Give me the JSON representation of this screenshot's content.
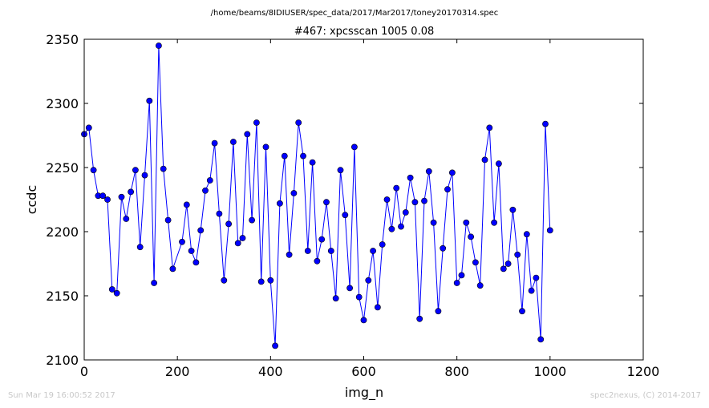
{
  "footer": {
    "timestamp": "Sun Mar 19 16:00:52 2017",
    "credit": "spec2nexus, (C) 2014-2017"
  },
  "chart_data": {
    "type": "line",
    "title": "#467: xpcsscan 1005 0.08",
    "subtitle": "/home/beams/8IDIUSER/spec_data/2017/Mar2017/toney20170314.spec",
    "xlabel": "img_n",
    "ylabel": "ccdc",
    "xlim": [
      0,
      1200
    ],
    "ylim": [
      2100,
      2350
    ],
    "xticks": [
      0,
      200,
      400,
      600,
      800,
      1000,
      1200
    ],
    "yticks": [
      2100,
      2150,
      2200,
      2250,
      2300,
      2350
    ],
    "grid": false,
    "line_color": "#0000ff",
    "marker": "circle",
    "series": [
      {
        "x": [
          0,
          10,
          20,
          30,
          40,
          50,
          60,
          70,
          80,
          90,
          100,
          110,
          120,
          130,
          140,
          150,
          160,
          170,
          180,
          190,
          210,
          220,
          230,
          240,
          250,
          260,
          270,
          280,
          290,
          300,
          310,
          320,
          330,
          340,
          350,
          360,
          370,
          380,
          390,
          400,
          410,
          420,
          430,
          440,
          450,
          460,
          470,
          480,
          490,
          500,
          510,
          520,
          530,
          540,
          550,
          560,
          570,
          580,
          590,
          600,
          610,
          620,
          630,
          640,
          650,
          660,
          670,
          680,
          690,
          700,
          710,
          720,
          730,
          740,
          750,
          760,
          770,
          780,
          790,
          800,
          810,
          820,
          830,
          840,
          850,
          860,
          870,
          880,
          890,
          900,
          910,
          920,
          930,
          940,
          950,
          960,
          970,
          980,
          990,
          1000
        ],
        "y": [
          2276,
          2281,
          2248,
          2228,
          2228,
          2225,
          2155,
          2152,
          2227,
          2210,
          2231,
          2248,
          2188,
          2244,
          2302,
          2160,
          2345,
          2249,
          2209,
          2171,
          2192,
          2221,
          2185,
          2176,
          2201,
          2232,
          2240,
          2269,
          2214,
          2162,
          2206,
          2270,
          2191,
          2195,
          2276,
          2209,
          2285,
          2161,
          2266,
          2162,
          2111,
          2222,
          2259,
          2182,
          2230,
          2285,
          2259,
          2185,
          2254,
          2177,
          2194,
          2223,
          2185,
          2148,
          2248,
          2213,
          2156,
          2266,
          2149,
          2131,
          2162,
          2185,
          2141,
          2190,
          2225,
          2202,
          2234,
          2204,
          2215,
          2242,
          2223,
          2132,
          2224,
          2247,
          2207,
          2138,
          2187,
          2233,
          2246,
          2160,
          2166,
          2207,
          2196,
          2176,
          2158,
          2256,
          2281,
          2207,
          2253,
          2171,
          2175,
          2217,
          2182,
          2138,
          2198,
          2154,
          2164,
          2116,
          2284,
          2201
        ]
      }
    ]
  }
}
